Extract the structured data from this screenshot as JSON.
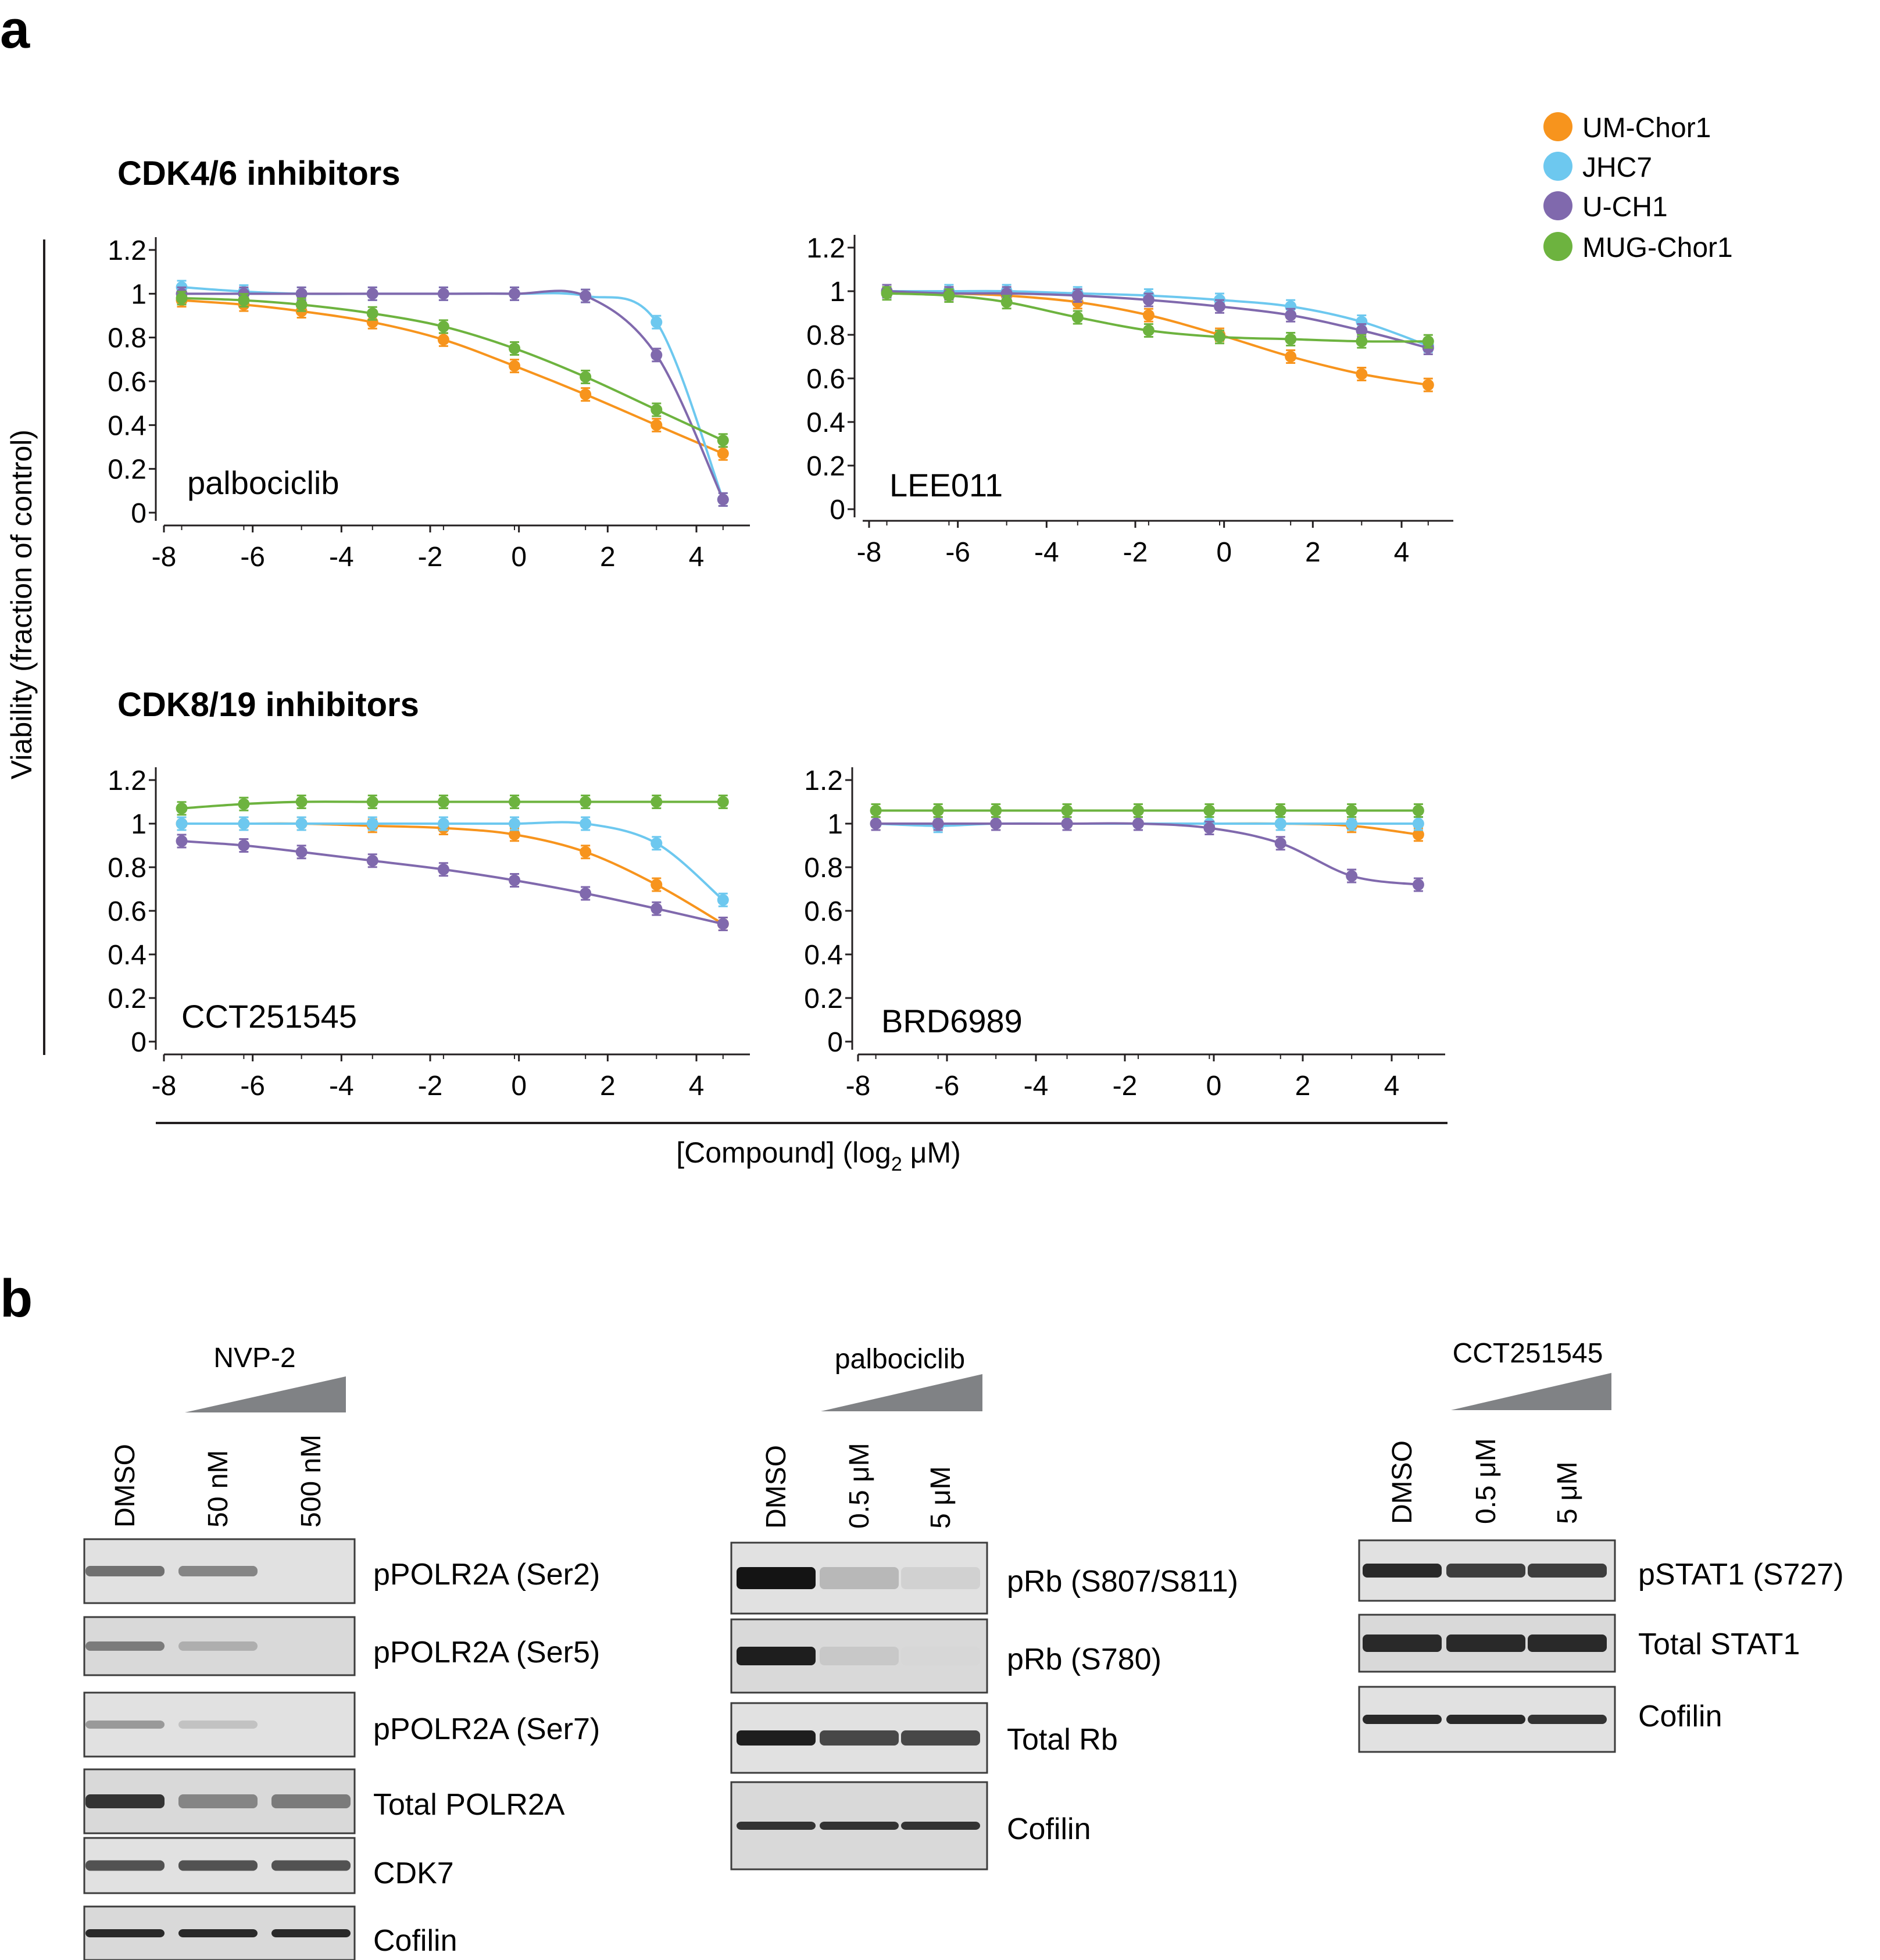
{
  "panel_a": {
    "letter": "a",
    "group_titles": [
      "CDK4/6 inhibitors",
      "CDK8/19 inhibitors"
    ],
    "y_axis_label": "Viability (fraction of control)",
    "x_axis_label_prefix": "[Compound] (log",
    "x_axis_label_sub": "2",
    "x_axis_label_suffix": " μM)"
  },
  "legend": [
    {
      "name": "UM-Chor1",
      "color": "#f7941d"
    },
    {
      "name": "JHC7",
      "color": "#6dc8ef"
    },
    {
      "name": "U-CH1",
      "color": "#8069ad"
    },
    {
      "name": "MUG-Chor1",
      "color": "#6db33f"
    }
  ],
  "chart_data": [
    {
      "type": "line",
      "title": "palbociclib",
      "group": "CDK4/6 inhibitors",
      "xlabel": "[Compound] (log2 μM)",
      "ylabel": "Viability (fraction of control)",
      "xlim": [
        -8,
        5
      ],
      "ylim": [
        0,
        1.2
      ],
      "xticks": [
        "-8",
        "-6",
        "-4",
        "-2",
        "0",
        "2",
        "4"
      ],
      "yticks": [
        "0",
        "0.2",
        "0.4",
        "0.6",
        "0.8",
        "1",
        "1.2"
      ],
      "x": [
        -7.6,
        -6.2,
        -4.9,
        -3.3,
        -1.7,
        -0.1,
        1.5,
        3.1,
        4.6
      ],
      "series": [
        {
          "name": "UM-Chor1",
          "values": [
            0.97,
            0.95,
            0.92,
            0.87,
            0.79,
            0.67,
            0.54,
            0.4,
            0.27
          ]
        },
        {
          "name": "JHC7",
          "values": [
            1.03,
            1.01,
            1.0,
            1.0,
            1.0,
            1.0,
            0.99,
            0.87,
            0.06
          ]
        },
        {
          "name": "U-CH1",
          "values": [
            1.0,
            1.0,
            1.0,
            1.0,
            1.0,
            1.0,
            0.99,
            0.72,
            0.06
          ]
        },
        {
          "name": "MUG-Chor1",
          "values": [
            0.98,
            0.97,
            0.95,
            0.91,
            0.85,
            0.75,
            0.62,
            0.47,
            0.33
          ]
        }
      ]
    },
    {
      "type": "line",
      "title": "LEE011",
      "group": "CDK4/6 inhibitors",
      "xlabel": "[Compound] (log2 μM)",
      "ylabel": "Viability (fraction of control)",
      "xlim": [
        -8,
        5
      ],
      "ylim": [
        0,
        1.2
      ],
      "xticks": [
        "-8",
        "-6",
        "-4",
        "-2",
        "0",
        "2",
        "4"
      ],
      "yticks": [
        "0",
        "0.2",
        "0.4",
        "0.6",
        "0.8",
        "1",
        "1.2"
      ],
      "x": [
        -7.6,
        -6.2,
        -4.9,
        -3.3,
        -1.7,
        -0.1,
        1.5,
        3.1,
        4.6
      ],
      "series": [
        {
          "name": "UM-Chor1",
          "values": [
            1.0,
            0.99,
            0.98,
            0.95,
            0.89,
            0.8,
            0.7,
            0.62,
            0.57
          ]
        },
        {
          "name": "JHC7",
          "values": [
            1.0,
            1.0,
            1.0,
            0.99,
            0.98,
            0.96,
            0.93,
            0.86,
            0.75
          ]
        },
        {
          "name": "U-CH1",
          "values": [
            1.0,
            0.99,
            0.99,
            0.98,
            0.96,
            0.93,
            0.89,
            0.82,
            0.74
          ]
        },
        {
          "name": "MUG-Chor1",
          "values": [
            0.99,
            0.98,
            0.95,
            0.88,
            0.82,
            0.79,
            0.78,
            0.77,
            0.77
          ]
        }
      ]
    },
    {
      "type": "line",
      "title": "CCT251545",
      "group": "CDK8/19 inhibitors",
      "xlabel": "[Compound] (log2 μM)",
      "ylabel": "Viability (fraction of control)",
      "xlim": [
        -8,
        5
      ],
      "ylim": [
        0,
        1.2
      ],
      "xticks": [
        "-8",
        "-6",
        "-4",
        "-2",
        "0",
        "2",
        "4"
      ],
      "yticks": [
        "0",
        "0.2",
        "0.4",
        "0.6",
        "0.8",
        "1",
        "1.2"
      ],
      "x": [
        -7.6,
        -6.2,
        -4.9,
        -3.3,
        -1.7,
        -0.1,
        1.5,
        3.1,
        4.6
      ],
      "series": [
        {
          "name": "UM-Chor1",
          "values": [
            1.0,
            1.0,
            1.0,
            0.99,
            0.98,
            0.95,
            0.87,
            0.72,
            0.54
          ]
        },
        {
          "name": "JHC7",
          "values": [
            1.0,
            1.0,
            1.0,
            1.0,
            1.0,
            1.0,
            1.0,
            0.91,
            0.65
          ]
        },
        {
          "name": "U-CH1",
          "values": [
            0.92,
            0.9,
            0.87,
            0.83,
            0.79,
            0.74,
            0.68,
            0.61,
            0.54
          ]
        },
        {
          "name": "MUG-Chor1",
          "values": [
            1.07,
            1.09,
            1.1,
            1.1,
            1.1,
            1.1,
            1.1,
            1.1,
            1.1
          ]
        }
      ]
    },
    {
      "type": "line",
      "title": "BRD6989",
      "group": "CDK8/19 inhibitors",
      "xlabel": "[Compound] (log2 μM)",
      "ylabel": "Viability (fraction of control)",
      "xlim": [
        -8,
        5
      ],
      "ylim": [
        0,
        1.2
      ],
      "xticks": [
        "-8",
        "-6",
        "-4",
        "-2",
        "0",
        "2",
        "4"
      ],
      "yticks": [
        "0",
        "0.2",
        "0.4",
        "0.6",
        "0.8",
        "1",
        "1.2"
      ],
      "x": [
        -7.6,
        -6.2,
        -4.9,
        -3.3,
        -1.7,
        -0.1,
        1.5,
        3.1,
        4.6
      ],
      "series": [
        {
          "name": "UM-Chor1",
          "values": [
            1.0,
            1.0,
            1.0,
            1.0,
            1.0,
            1.0,
            1.0,
            0.99,
            0.95
          ]
        },
        {
          "name": "JHC7",
          "values": [
            1.0,
            0.99,
            1.0,
            1.0,
            1.0,
            1.0,
            1.0,
            1.0,
            1.0
          ]
        },
        {
          "name": "U-CH1",
          "values": [
            1.0,
            1.0,
            1.0,
            1.0,
            1.0,
            0.98,
            0.91,
            0.76,
            0.72
          ]
        },
        {
          "name": "MUG-Chor1",
          "values": [
            1.06,
            1.06,
            1.06,
            1.06,
            1.06,
            1.06,
            1.06,
            1.06,
            1.06
          ]
        }
      ]
    }
  ],
  "panel_b": {
    "letter": "b",
    "blots": [
      {
        "treatment": "NVP-2",
        "lanes": [
          "DMSO",
          "50 nM",
          "500 nM"
        ],
        "rows": [
          {
            "label": "pPOLR2A (Ser2)",
            "intensities": [
              0.55,
              0.45,
              0.0
            ]
          },
          {
            "label": "pPOLR2A (Ser5)",
            "intensities": [
              0.5,
              0.25,
              0.0
            ]
          },
          {
            "label": "pPOLR2A (Ser7)",
            "intensities": [
              0.35,
              0.15,
              0.0
            ]
          },
          {
            "label": "Total POLR2A",
            "intensities": [
              0.85,
              0.45,
              0.5
            ]
          },
          {
            "label": "CDK7",
            "intensities": [
              0.7,
              0.7,
              0.7
            ]
          },
          {
            "label": "Cofilin",
            "intensities": [
              0.9,
              0.9,
              0.9
            ]
          }
        ]
      },
      {
        "treatment": "palbociclib",
        "lanes": [
          "DMSO",
          "0.5 μM",
          "5 μM"
        ],
        "rows": [
          {
            "label": "pRb (S807/S811)",
            "intensities": [
              1.0,
              0.2,
              0.08
            ]
          },
          {
            "label": "pRb (S780)",
            "intensities": [
              0.95,
              0.12,
              0.05
            ]
          },
          {
            "label": "Total Rb",
            "intensities": [
              0.95,
              0.75,
              0.75
            ]
          },
          {
            "label": "Cofilin",
            "intensities": [
              0.85,
              0.85,
              0.85
            ]
          }
        ]
      },
      {
        "treatment": "CCT251545",
        "lanes": [
          "DMSO",
          "0.5 μM",
          "5 μM"
        ],
        "rows": [
          {
            "label": "pSTAT1 (S727)",
            "intensities": [
              0.9,
              0.8,
              0.8
            ]
          },
          {
            "label": "Total STAT1",
            "intensities": [
              0.9,
              0.9,
              0.9
            ]
          },
          {
            "label": "Cofilin",
            "intensities": [
              0.9,
              0.9,
              0.85
            ]
          }
        ]
      }
    ]
  }
}
